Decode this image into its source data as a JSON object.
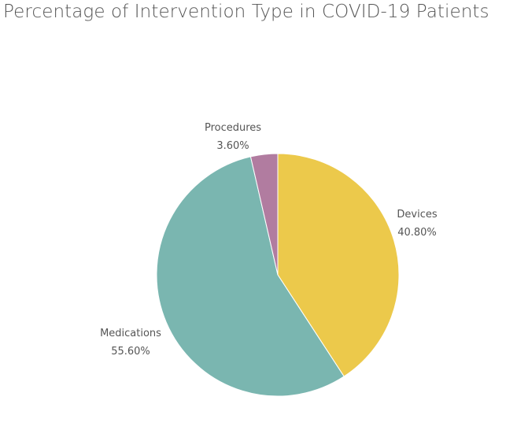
{
  "chart_data": {
    "type": "pie",
    "title": "Percentage of Intervention Type in COVID-19 Patients",
    "slices": [
      {
        "name": "Devices",
        "value": 40.8,
        "label": "40.80%",
        "color": "#ecc94b"
      },
      {
        "name": "Medications",
        "value": 55.6,
        "label": "55.60%",
        "color": "#7ab6b0"
      },
      {
        "name": "Procedures",
        "value": 3.6,
        "label": "3.60%",
        "color": "#b17ca0"
      }
    ],
    "legend": "none"
  }
}
